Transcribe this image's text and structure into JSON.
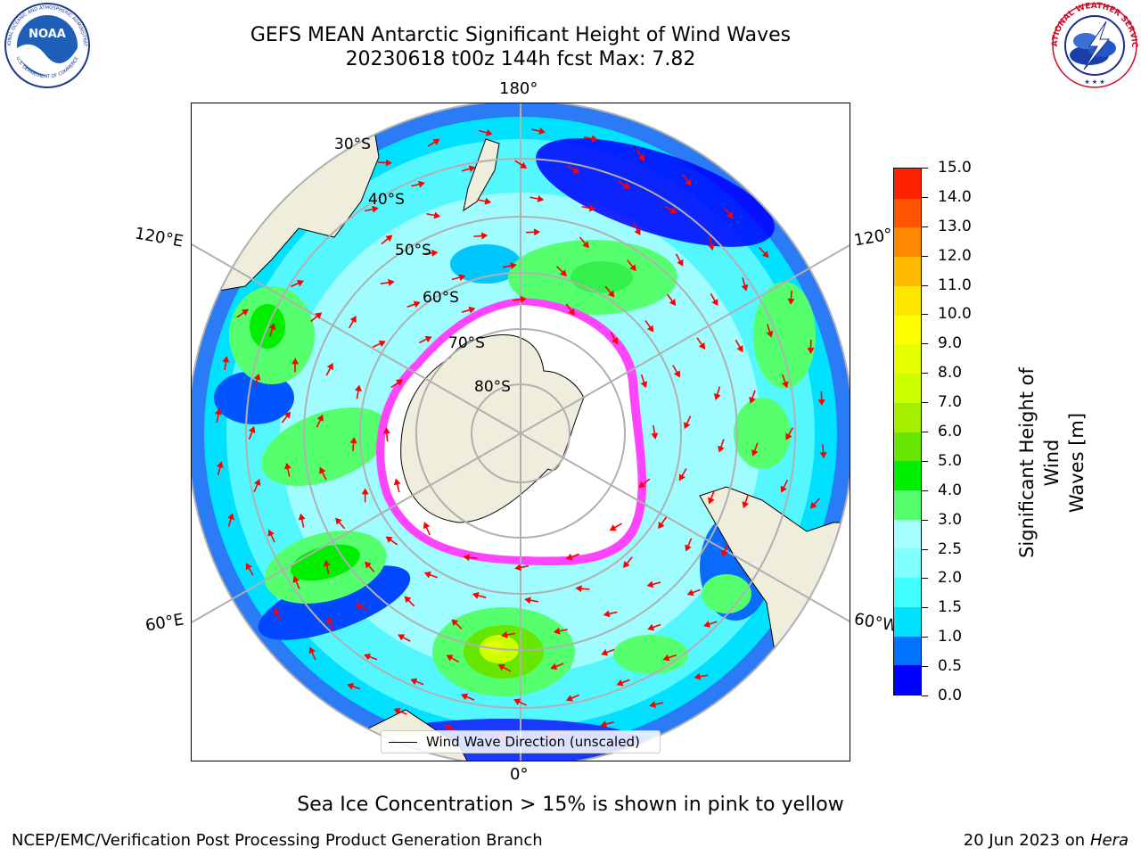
{
  "title_line1": "GEFS MEAN Antarctic Significant Height of Wind Waves",
  "title_line2": "20230618 t00z 144h fcst   Max: 7.82",
  "logos": {
    "left": "noaa-logo",
    "right": "nws-logo",
    "left_text": "NOAA",
    "left_ring": "NATIONAL OCEANIC AND ATMOSPHERIC ADMINISTRATION",
    "left_ring2": "U.S. DEPARTMENT OF COMMERCE",
    "right_ring": "NATIONAL WEATHER SERVICE"
  },
  "map": {
    "projection": "south-polar-stereographic",
    "lon_labels": {
      "top": "180°",
      "bottom": "0°",
      "left_upper": "120°E",
      "left_lower": "60°E",
      "right_upper": "120°",
      "right_lower": "60°W"
    },
    "lat_labels": [
      "30°S",
      "40°S",
      "50°S",
      "60°S",
      "70°S",
      "80°S"
    ],
    "land_color": "#efeddc",
    "ice_edge_color": "#ff33ff",
    "arrow_color": "#ff0000"
  },
  "legend": {
    "label": "Wind Wave Direction (unscaled)"
  },
  "colorbar": {
    "label": "Significant Height of Wind Waves [m]",
    "label_line1": "Significant Height of Wind",
    "label_line2": "Waves [m]",
    "ticks": [
      "0.0",
      "0.5",
      "1.0",
      "1.5",
      "2.0",
      "2.5",
      "3.0",
      "4.0",
      "5.0",
      "6.0",
      "7.0",
      "8.0",
      "9.0",
      "10.0",
      "11.0",
      "12.0",
      "13.0",
      "14.0",
      "15.0"
    ],
    "colors": [
      "#0000ff",
      "#0073ff",
      "#00e1ff",
      "#40ffff",
      "#80ffff",
      "#a6ffff",
      "#55ff6e",
      "#00ee00",
      "#66e600",
      "#a6ee00",
      "#ccff00",
      "#e6ff00",
      "#ffff00",
      "#ffe600",
      "#ffbb00",
      "#ff8800",
      "#ff5500",
      "#ff2200"
    ]
  },
  "note": "Sea Ice Concentration > 15% is shown in pink to yellow",
  "footer_left": "NCEP/EMC/Verification Post Processing Product Generation Branch",
  "footer_date": "20 Jun 2023 on",
  "footer_host": "Hera"
}
